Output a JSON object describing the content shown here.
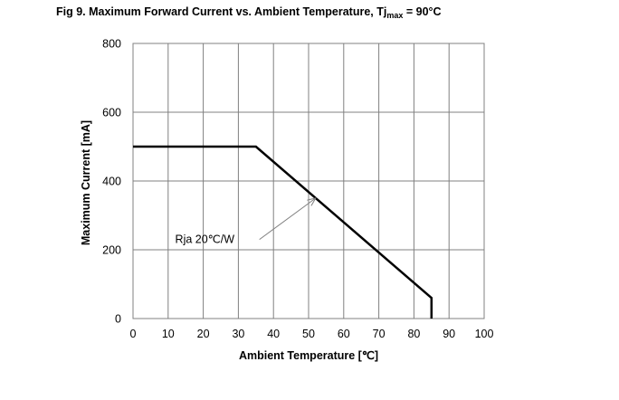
{
  "figure": {
    "title_prefix": "Fig 9. Maximum Forward Current vs. Ambient Temperature, Tj",
    "title_subscript": "max",
    "title_suffix": " = 90°C"
  },
  "chart_data": {
    "type": "line",
    "title": "Fig 9. Maximum Forward Current vs. Ambient Temperature, Tjmax = 90°C",
    "xlabel": "Ambient Temperature [℃]",
    "ylabel": "Maximum Current [mA]",
    "xlim": [
      0,
      100
    ],
    "ylim": [
      0,
      800
    ],
    "x_ticks": [
      0,
      10,
      20,
      30,
      40,
      50,
      60,
      70,
      80,
      90,
      100
    ],
    "y_ticks": [
      0,
      200,
      400,
      600,
      800
    ],
    "grid": true,
    "series": [
      {
        "x": [
          0,
          35,
          85,
          85
        ],
        "y": [
          500,
          500,
          60,
          0
        ]
      }
    ],
    "annotations": [
      {
        "text": "Rja  20℃/W",
        "label_x": 12,
        "label_y": 220,
        "arrow_from": [
          36,
          230
        ],
        "arrow_to": [
          52,
          350
        ]
      }
    ],
    "line_color": "#000000",
    "grid_color": "#808080"
  }
}
